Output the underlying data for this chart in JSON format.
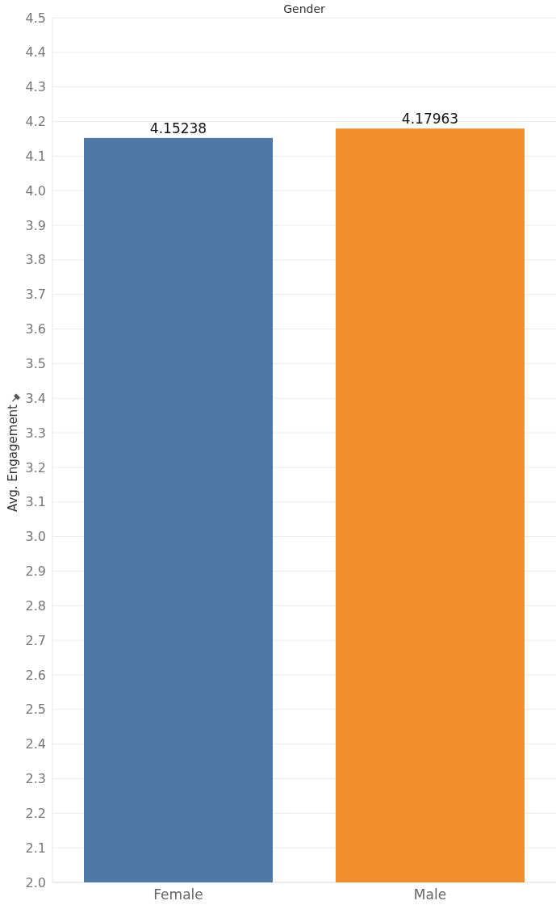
{
  "chart_data": {
    "type": "bar",
    "title": "Gender",
    "ylabel": "Avg. Engagement",
    "categories": [
      "Female",
      "Male"
    ],
    "values": [
      4.15238,
      4.17963
    ],
    "colors": [
      "#4e79a7",
      "#f28e2b"
    ],
    "ylim": [
      2.0,
      4.5
    ],
    "yticks": [
      {
        "value": 2.0,
        "label": "2.0"
      },
      2.1,
      2.2,
      2.3,
      2.4,
      2.5,
      2.6,
      2.7,
      2.8,
      2.9,
      {
        "value": 3.0,
        "label": "3.0"
      },
      3.1,
      3.2,
      3.3,
      3.4,
      3.5,
      3.6,
      3.7,
      3.8,
      3.9,
      {
        "value": 4.0,
        "label": "4.0"
      },
      4.1,
      4.2,
      4.3,
      4.4,
      4.5
    ],
    "grid": "y",
    "data_labels": true
  }
}
